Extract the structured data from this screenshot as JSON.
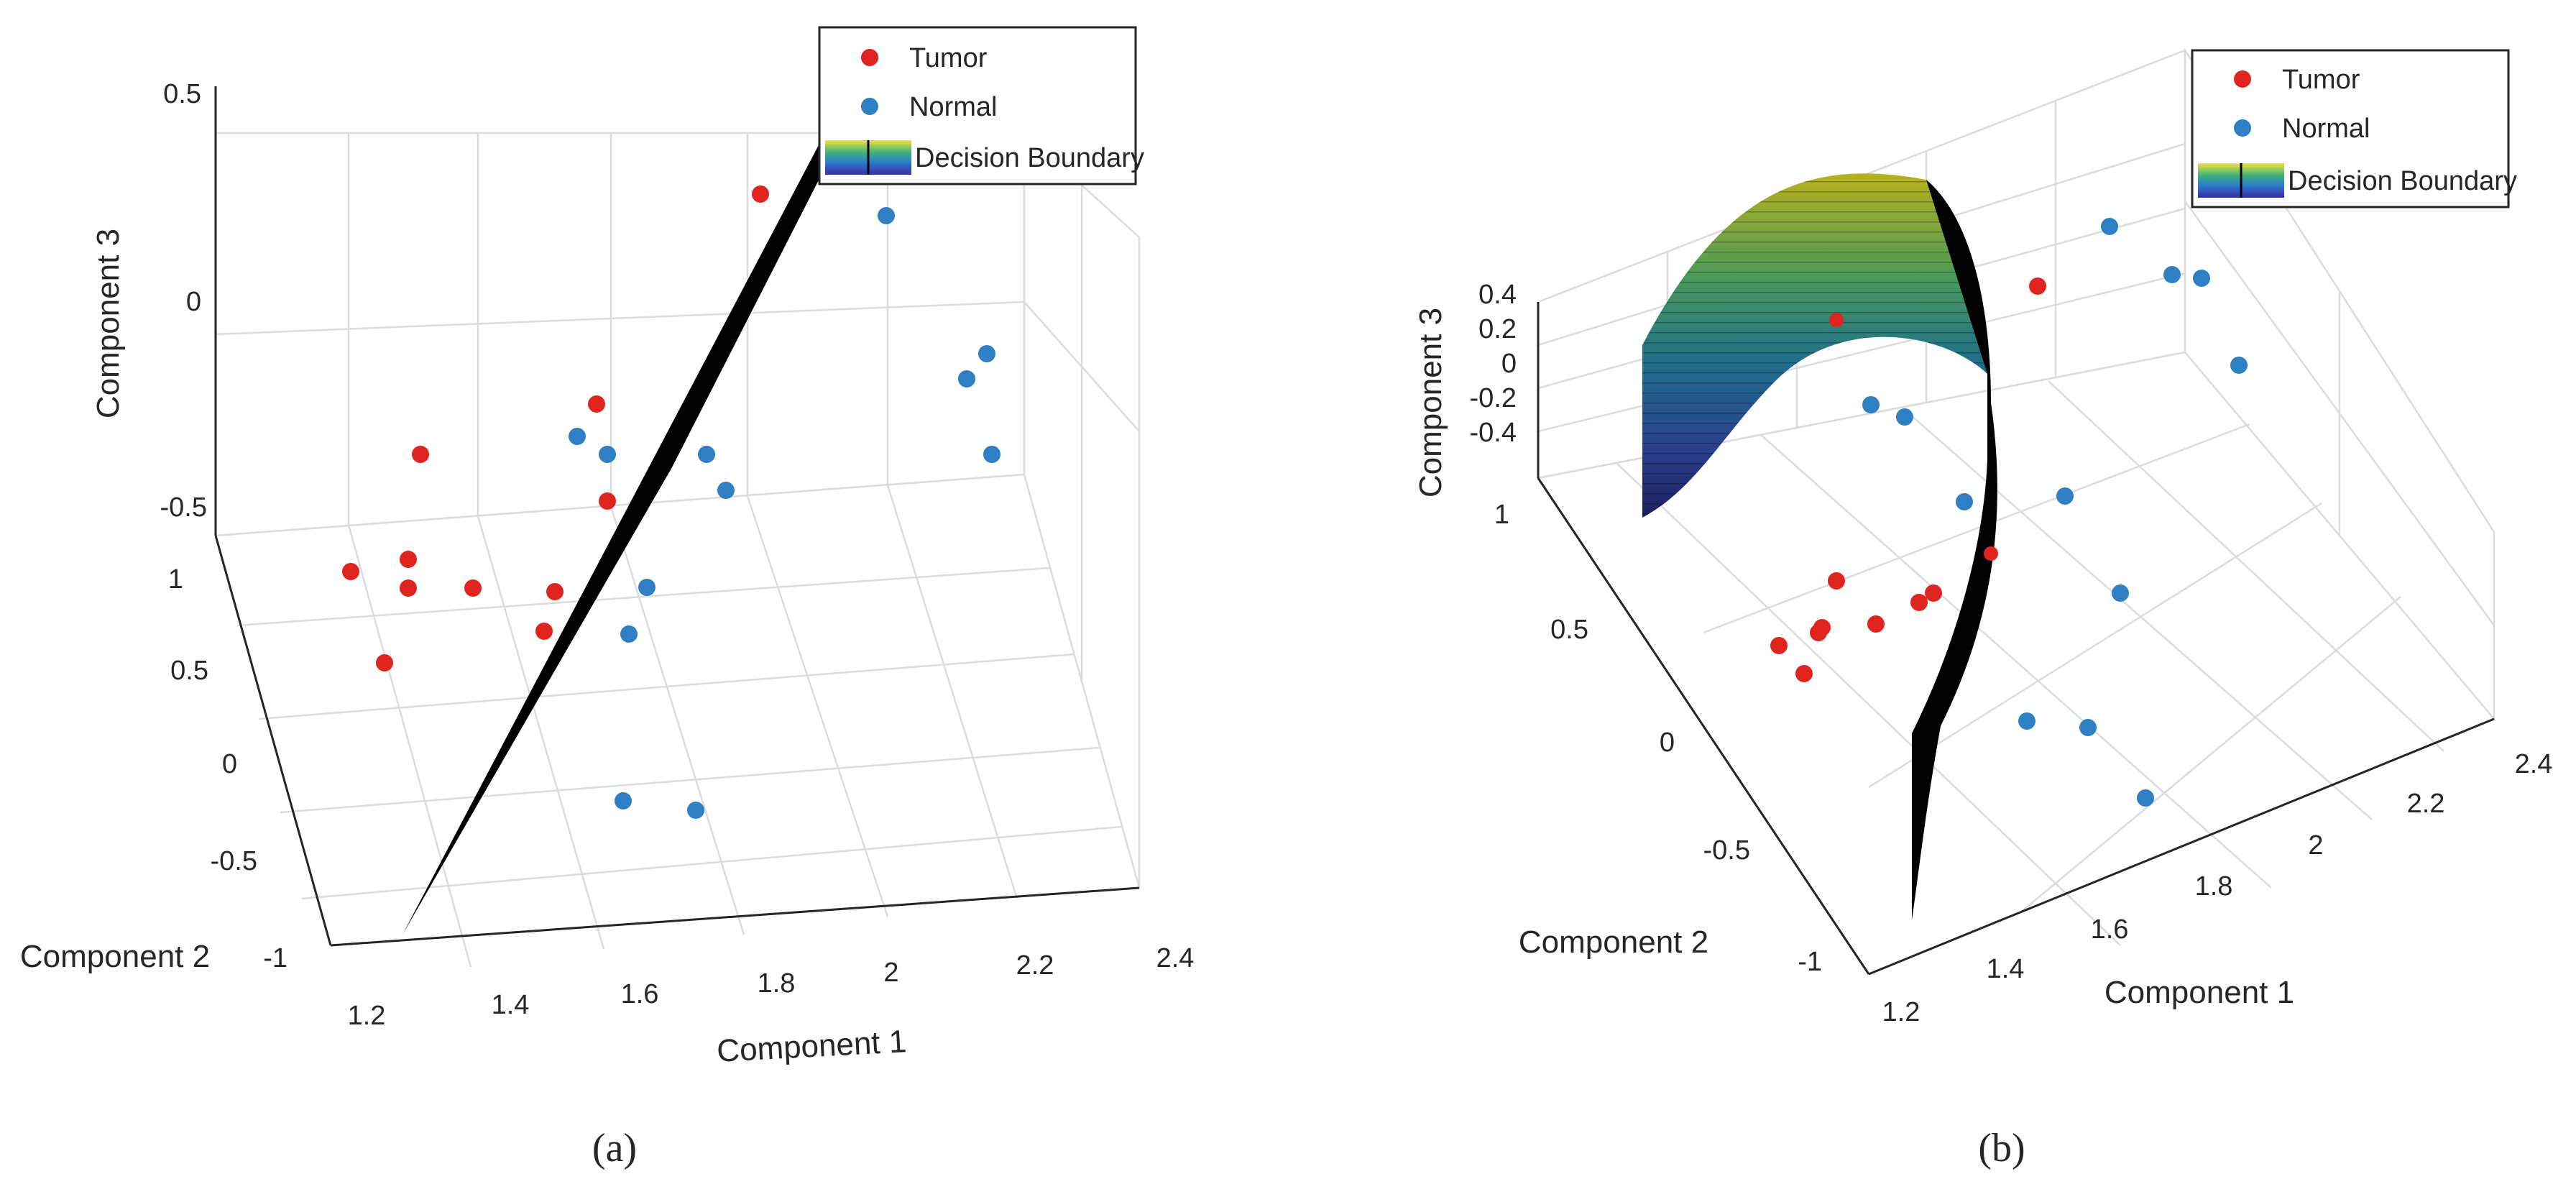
{
  "colors": {
    "tumor": "#e0241f",
    "normal": "#2f7fc4",
    "plane": "#000000"
  },
  "chart_data": [
    {
      "panel": "a",
      "type": "scatter",
      "caption": "(a)",
      "xlabel": "Component 1",
      "ylabel": "Component 2",
      "zlabel": "Component 3",
      "xticks": [
        "1.2",
        "1.4",
        "1.6",
        "1.8",
        "2",
        "2.2",
        "2.4"
      ],
      "yticks": [
        "-1",
        "-0.5",
        "0",
        "0.5",
        "1"
      ],
      "zticks": [
        "-0.5",
        "0",
        "0.5"
      ],
      "xlim": [
        1.2,
        2.4
      ],
      "ylim": [
        -1,
        1
      ],
      "zlim": [
        -0.5,
        0.5
      ],
      "legend": {
        "position": "top-right",
        "entries": [
          "Tumor",
          "Normal",
          "Decision Boundary"
        ]
      },
      "series": [
        {
          "name": "Tumor",
          "points": [
            [
              1.2,
              0.5,
              -0.5
            ],
            [
              1.29,
              0.52,
              -0.46
            ],
            [
              1.32,
              0.6,
              -0.5
            ],
            [
              1.4,
              0.55,
              -0.5
            ],
            [
              1.22,
              0.1,
              -0.4
            ],
            [
              1.52,
              0.5,
              -0.5
            ],
            [
              1.5,
              0.35,
              -0.5
            ],
            [
              1.52,
              0.95,
              -0.4
            ],
            [
              1.35,
              0.95,
              -0.2
            ],
            [
              1.45,
              0.9,
              0.1
            ],
            [
              1.85,
              0.9,
              0.5
            ]
          ]
        },
        {
          "name": "Normal",
          "points": [
            [
              1.55,
              0.9,
              -0.15
            ],
            [
              1.6,
              0.85,
              -0.25
            ],
            [
              1.75,
              0.85,
              -0.25
            ],
            [
              1.82,
              0.8,
              -0.35
            ],
            [
              1.7,
              0.35,
              -0.5
            ],
            [
              1.65,
              0.1,
              -0.5
            ],
            [
              1.55,
              -0.55,
              -0.5
            ],
            [
              1.72,
              -0.6,
              -0.5
            ],
            [
              2.1,
              0.95,
              0.45
            ],
            [
              2.25,
              0.9,
              -0.15
            ],
            [
              2.35,
              0.95,
              -0.05
            ],
            [
              2.4,
              0.8,
              -0.35
            ]
          ]
        }
      ],
      "decision_boundary": "plane"
    },
    {
      "panel": "b",
      "type": "scatter",
      "caption": "(b)",
      "xlabel": "Component 1",
      "ylabel": "Component 2",
      "zlabel": "Component 3",
      "xticks": [
        "1.2",
        "1.4",
        "1.6",
        "1.8",
        "2",
        "2.2",
        "2.4"
      ],
      "yticks": [
        "-1",
        "-0.5",
        "0",
        "0.5",
        "1"
      ],
      "zticks": [
        "-0.4",
        "-0.2",
        "0",
        "0.2",
        "0.4"
      ],
      "xlim": [
        1.2,
        2.4
      ],
      "ylim": [
        -1,
        1
      ],
      "zlim": [
        -0.4,
        0.4
      ],
      "legend": {
        "position": "top-right",
        "entries": [
          "Tumor",
          "Normal",
          "Decision Boundary"
        ]
      },
      "series": [
        {
          "name": "Tumor",
          "points": [
            [
              1.3,
              0.5,
              0
            ],
            [
              1.35,
              0.45,
              0
            ],
            [
              1.36,
              0.5,
              0
            ],
            [
              1.3,
              0.62,
              0
            ],
            [
              1.4,
              0.55,
              0
            ],
            [
              1.25,
              0.45,
              0
            ],
            [
              1.5,
              0.6,
              0
            ],
            [
              1.55,
              0.62,
              0
            ],
            [
              1.7,
              0.7,
              0
            ],
            [
              1.55,
              0.95,
              0.2
            ],
            [
              1.9,
              1,
              0.3
            ]
          ]
        },
        {
          "name": "Normal",
          "points": [
            [
              1.7,
              1,
              0
            ],
            [
              1.75,
              0.95,
              0
            ],
            [
              1.85,
              0.8,
              0
            ],
            [
              2.0,
              0.8,
              0
            ],
            [
              2.05,
              0.5,
              0
            ],
            [
              1.9,
              0.1,
              0
            ],
            [
              2.0,
              0.1,
              0
            ],
            [
              2.15,
              -0.1,
              0
            ],
            [
              2.1,
              1,
              0.4
            ],
            [
              2.25,
              1,
              0.3
            ],
            [
              2.3,
              1,
              0.3
            ],
            [
              2.4,
              0.85,
              0.1
            ]
          ]
        }
      ],
      "decision_boundary": "parabolic surface"
    }
  ]
}
